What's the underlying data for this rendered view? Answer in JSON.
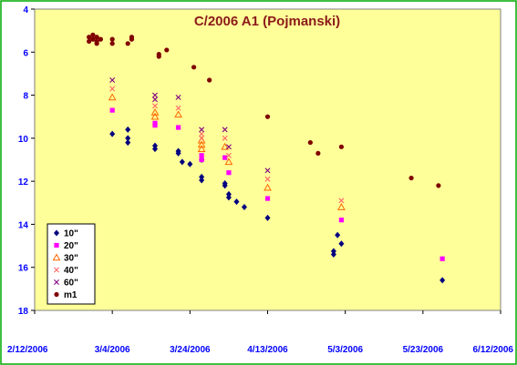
{
  "chart_data": {
    "type": "scatter",
    "title": "C/2006 A1 (Pojmanski)",
    "x_axis": {
      "type": "date",
      "min": "2006-02-12",
      "max": "2006-06-12",
      "ticks": [
        "2/12/2006",
        "3/4/2006",
        "3/24/2006",
        "4/13/2006",
        "5/3/2006",
        "5/23/2006",
        "6/12/2006"
      ],
      "tick_dates": [
        "2006-02-12",
        "2006-03-04",
        "2006-03-24",
        "2006-04-13",
        "2006-05-03",
        "2006-05-23",
        "2006-06-12"
      ]
    },
    "y_axis": {
      "min": 4,
      "max": 18,
      "reversed": true,
      "ticks": [
        "4",
        "6",
        "8",
        "10",
        "12",
        "14",
        "16",
        "18"
      ],
      "tick_values": [
        4,
        6,
        8,
        10,
        12,
        14,
        16,
        18
      ]
    },
    "grid": false,
    "legend_position": "bottom-left",
    "colors": {
      "plot_background": "#ffff99",
      "plot_border": "#808080",
      "frame_border": "#00aa00",
      "tick_label": "#0000ff",
      "title": "#8b1a1a"
    },
    "series": [
      {
        "name": "10\"",
        "marker": "diamond",
        "color": "#000080",
        "points": [
          [
            "2006-03-04",
            9.8
          ],
          [
            "2006-03-08",
            10.0
          ],
          [
            "2006-03-08",
            10.2
          ],
          [
            "2006-03-08",
            9.6
          ],
          [
            "2006-03-15",
            10.35
          ],
          [
            "2006-03-15",
            10.5
          ],
          [
            "2006-03-21",
            10.6
          ],
          [
            "2006-03-21",
            10.7
          ],
          [
            "2006-03-22",
            11.1
          ],
          [
            "2006-03-24",
            11.2
          ],
          [
            "2006-03-27",
            11.0
          ],
          [
            "2006-03-27",
            11.8
          ],
          [
            "2006-03-27",
            11.95
          ],
          [
            "2006-04-02",
            12.1
          ],
          [
            "2006-04-02",
            12.2
          ],
          [
            "2006-04-03",
            12.6
          ],
          [
            "2006-04-03",
            12.75
          ],
          [
            "2006-04-05",
            12.95
          ],
          [
            "2006-04-07",
            13.2
          ],
          [
            "2006-04-13",
            13.7
          ],
          [
            "2006-04-30",
            15.25
          ],
          [
            "2006-04-30",
            15.4
          ],
          [
            "2006-05-01",
            14.5
          ],
          [
            "2006-05-02",
            14.9
          ],
          [
            "2006-05-28",
            16.6
          ]
        ]
      },
      {
        "name": "20\"",
        "marker": "square",
        "color": "#ff00ff",
        "points": [
          [
            "2006-03-04",
            8.7
          ],
          [
            "2006-03-15",
            9.3
          ],
          [
            "2006-03-15",
            9.4
          ],
          [
            "2006-03-21",
            9.5
          ],
          [
            "2006-03-27",
            10.8
          ],
          [
            "2006-03-27",
            11.0
          ],
          [
            "2006-04-02",
            10.9
          ],
          [
            "2006-04-03",
            11.6
          ],
          [
            "2006-04-13",
            12.8
          ],
          [
            "2006-05-02",
            13.8
          ],
          [
            "2006-05-28",
            15.6
          ]
        ]
      },
      {
        "name": "30\"",
        "marker": "triangle",
        "color": "#ff6600",
        "points": [
          [
            "2006-03-04",
            8.1
          ],
          [
            "2006-03-15",
            8.8
          ],
          [
            "2006-03-15",
            9.0
          ],
          [
            "2006-03-21",
            8.9
          ],
          [
            "2006-03-27",
            10.1
          ],
          [
            "2006-03-27",
            10.3
          ],
          [
            "2006-03-27",
            10.5
          ],
          [
            "2006-04-02",
            10.4
          ],
          [
            "2006-04-03",
            11.1
          ],
          [
            "2006-04-13",
            12.3
          ],
          [
            "2006-05-02",
            13.2
          ]
        ]
      },
      {
        "name": "40\"",
        "marker": "x",
        "color": "#ff6666",
        "points": [
          [
            "2006-03-04",
            7.7
          ],
          [
            "2006-03-15",
            8.5
          ],
          [
            "2006-03-21",
            8.6
          ],
          [
            "2006-03-27",
            9.8
          ],
          [
            "2006-03-27",
            10.0
          ],
          [
            "2006-04-02",
            10.0
          ],
          [
            "2006-04-03",
            10.8
          ],
          [
            "2006-04-13",
            11.9
          ],
          [
            "2006-05-02",
            12.9
          ]
        ]
      },
      {
        "name": "60\"",
        "marker": "x",
        "color": "#800080",
        "points": [
          [
            "2006-03-04",
            7.3
          ],
          [
            "2006-03-15",
            8.0
          ],
          [
            "2006-03-15",
            8.2
          ],
          [
            "2006-03-21",
            8.1
          ],
          [
            "2006-03-27",
            9.6
          ],
          [
            "2006-04-02",
            9.6
          ],
          [
            "2006-04-03",
            10.4
          ],
          [
            "2006-04-13",
            11.5
          ]
        ]
      },
      {
        "name": "m1",
        "marker": "circle",
        "color": "#800000",
        "points": [
          [
            "2006-02-26",
            5.3
          ],
          [
            "2006-02-26",
            5.5
          ],
          [
            "2006-02-27",
            5.2
          ],
          [
            "2006-02-27",
            5.4
          ],
          [
            "2006-02-28",
            5.5
          ],
          [
            "2006-02-28",
            5.6
          ],
          [
            "2006-02-28",
            5.3
          ],
          [
            "2006-03-01",
            5.4
          ],
          [
            "2006-03-04",
            5.4
          ],
          [
            "2006-03-04",
            5.6
          ],
          [
            "2006-03-08",
            5.6
          ],
          [
            "2006-03-09",
            5.3
          ],
          [
            "2006-03-09",
            5.4
          ],
          [
            "2006-03-16",
            6.1
          ],
          [
            "2006-03-16",
            6.2
          ],
          [
            "2006-03-18",
            5.9
          ],
          [
            "2006-03-25",
            6.7
          ],
          [
            "2006-03-29",
            7.3
          ],
          [
            "2006-04-13",
            9.0
          ],
          [
            "2006-04-24",
            10.2
          ],
          [
            "2006-04-26",
            10.7
          ],
          [
            "2006-05-02",
            10.4
          ],
          [
            "2006-05-20",
            11.85
          ],
          [
            "2006-05-27",
            12.2
          ]
        ]
      }
    ]
  }
}
